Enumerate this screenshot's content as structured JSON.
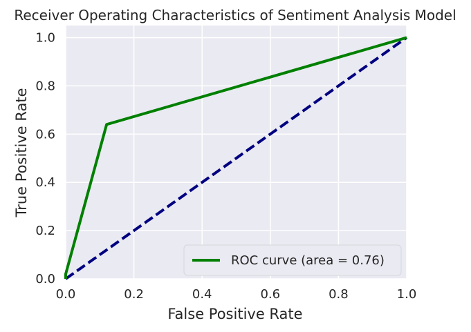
{
  "chart_data": {
    "type": "line",
    "title": "Receiver Operating Characteristics of Sentiment Analysis Model",
    "xlabel": "False Positive Rate",
    "ylabel": "True Positive Rate",
    "xlim": [
      0.0,
      1.0
    ],
    "ylim": [
      0.0,
      1.05
    ],
    "xticks": [
      "0.0",
      "0.2",
      "0.4",
      "0.6",
      "0.8",
      "1.0"
    ],
    "yticks": [
      "0.0",
      "0.2",
      "0.4",
      "0.6",
      "0.8",
      "1.0"
    ],
    "grid": true,
    "legend_position": "lower-right",
    "series": [
      {
        "name": "ROC curve (area = 0.76)",
        "color": "#008000",
        "style": "solid",
        "x": [
          0.0,
          0.0,
          0.12,
          1.0
        ],
        "y": [
          0.0,
          0.02,
          0.64,
          1.0
        ]
      },
      {
        "color": "#000080",
        "style": "dashed",
        "x": [
          0.0,
          1.0
        ],
        "y": [
          0.0,
          1.0
        ]
      }
    ]
  }
}
